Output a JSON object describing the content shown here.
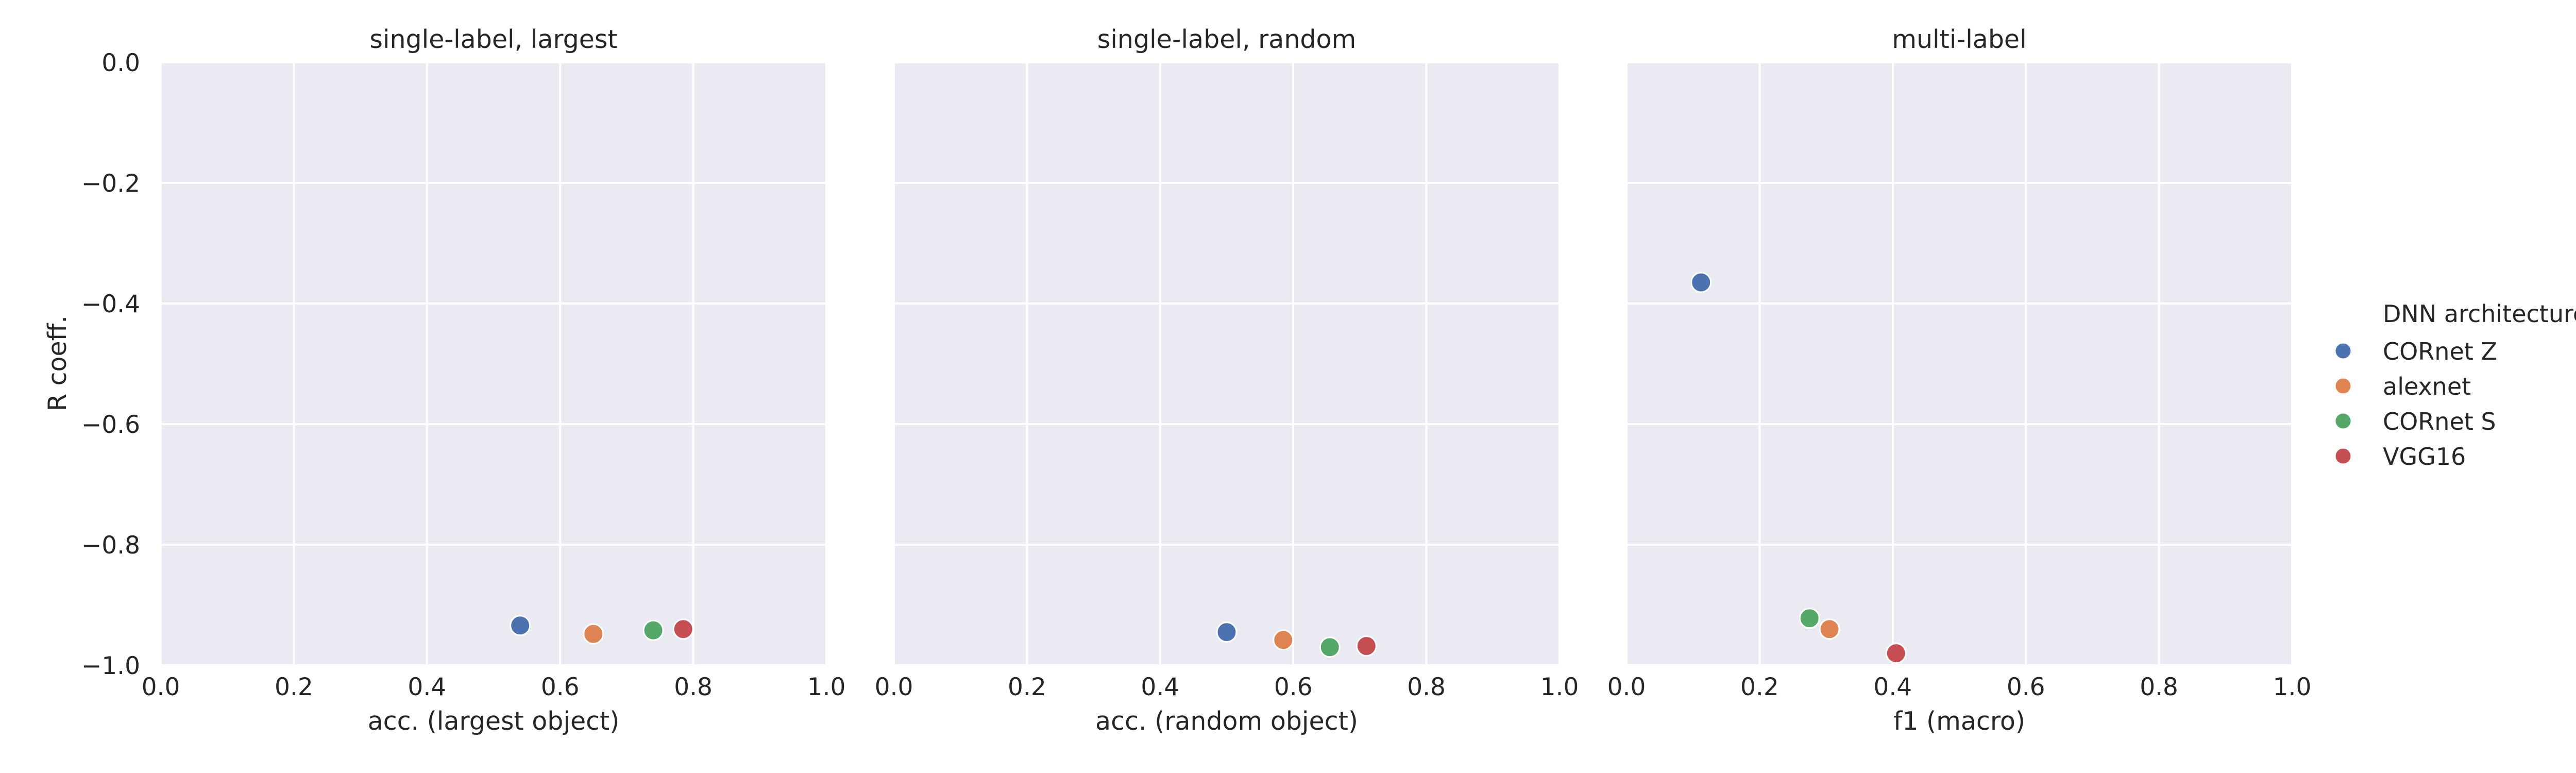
{
  "figure": {
    "ylabel": "R coeff.",
    "legend_title": "DNN architecture",
    "legend_entries": [
      {
        "name": "CORnet Z",
        "color": "#4c72b0"
      },
      {
        "name": "alexnet",
        "color": "#dd8452"
      },
      {
        "name": "CORnet S",
        "color": "#55a868"
      },
      {
        "name": "VGG16",
        "color": "#c44e52"
      }
    ]
  },
  "chart_data": [
    {
      "type": "scatter",
      "title": "single-label, largest",
      "xlabel": "acc. (largest object)",
      "ylabel": "R coeff.",
      "xlim": [
        0.0,
        1.0
      ],
      "ylim": [
        -1.0,
        0.0
      ],
      "xticks": [
        "0.0",
        "0.2",
        "0.4",
        "0.6",
        "0.8",
        "1.0"
      ],
      "yticks": [
        "0.0",
        "−0.2",
        "−0.4",
        "−0.6",
        "−0.8",
        "−1.0"
      ],
      "grid": true,
      "series": [
        {
          "name": "CORnet Z",
          "x": 0.54,
          "y": -0.934
        },
        {
          "name": "alexnet",
          "x": 0.65,
          "y": -0.948
        },
        {
          "name": "CORnet S",
          "x": 0.74,
          "y": -0.942
        },
        {
          "name": "VGG16",
          "x": 0.785,
          "y": -0.94
        }
      ]
    },
    {
      "type": "scatter",
      "title": "single-label, random",
      "xlabel": "acc. (random object)",
      "xlim": [
        0.0,
        1.0
      ],
      "ylim": [
        -1.0,
        0.0
      ],
      "xticks": [
        "0.0",
        "0.2",
        "0.4",
        "0.6",
        "0.8",
        "1.0"
      ],
      "grid": true,
      "series": [
        {
          "name": "CORnet Z",
          "x": 0.5,
          "y": -0.945
        },
        {
          "name": "alexnet",
          "x": 0.585,
          "y": -0.958
        },
        {
          "name": "CORnet S",
          "x": 0.655,
          "y": -0.97
        },
        {
          "name": "VGG16",
          "x": 0.71,
          "y": -0.968
        }
      ]
    },
    {
      "type": "scatter",
      "title": "multi-label",
      "xlabel": "f1 (macro)",
      "xlim": [
        0.0,
        1.0
      ],
      "ylim": [
        -1.0,
        0.0
      ],
      "xticks": [
        "0.0",
        "0.2",
        "0.4",
        "0.6",
        "0.8",
        "1.0"
      ],
      "grid": true,
      "series": [
        {
          "name": "CORnet Z",
          "x": 0.112,
          "y": -0.365
        },
        {
          "name": "alexnet",
          "x": 0.305,
          "y": -0.94
        },
        {
          "name": "CORnet S",
          "x": 0.275,
          "y": -0.922
        },
        {
          "name": "VGG16",
          "x": 0.405,
          "y": -0.98
        }
      ]
    }
  ]
}
